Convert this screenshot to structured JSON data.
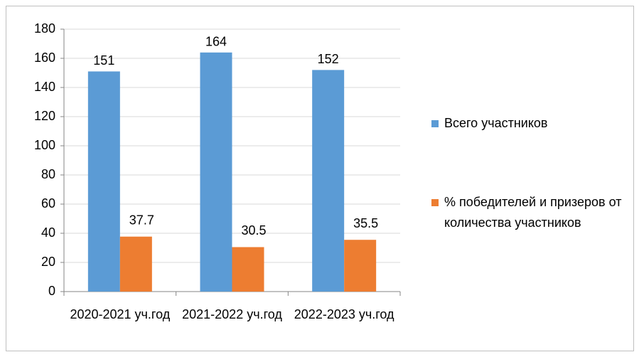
{
  "chart_data": {
    "type": "bar",
    "categories": [
      "2020-2021 уч.год",
      "2021-2022 уч.год",
      "2022-2023 уч.год"
    ],
    "series": [
      {
        "name": "Всего участников",
        "color": "#5b9bd5",
        "values": [
          151,
          164,
          152
        ]
      },
      {
        "name": "% победителей и призеров от количества участников",
        "color": "#ed7d31",
        "values": [
          37.7,
          30.5,
          35.5
        ]
      }
    ],
    "ylim": [
      0,
      180
    ],
    "yticks": [
      0,
      20,
      40,
      60,
      80,
      100,
      120,
      140,
      160,
      180
    ],
    "grid": true,
    "legend": "right"
  }
}
